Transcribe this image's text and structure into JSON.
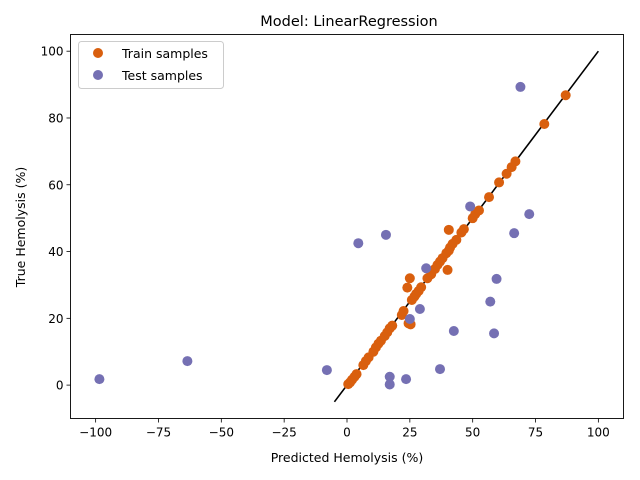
{
  "chart_data": {
    "type": "scatter",
    "title": "Model: LinearRegression",
    "xlabel": "Predicted Hemolysis (%)",
    "ylabel": "True Hemolysis (%)",
    "xlim": [
      -110,
      110
    ],
    "ylim": [
      -10,
      105
    ],
    "x_ticks": [
      -100,
      -75,
      -50,
      -25,
      0,
      25,
      50,
      75,
      100
    ],
    "y_ticks": [
      0,
      20,
      40,
      60,
      80,
      100
    ],
    "grid": false,
    "legend_position": "top-left",
    "reference_line": {
      "from": [
        -5,
        -5
      ],
      "to": [
        100,
        100
      ],
      "color": "#000000"
    },
    "series": [
      {
        "name": "Train samples",
        "color": "#d95f0e",
        "points": [
          [
            0.5,
            0.3
          ],
          [
            1.2,
            0.8
          ],
          [
            2.0,
            1.6
          ],
          [
            3.0,
            2.5
          ],
          [
            3.8,
            3.3
          ],
          [
            6.5,
            6.0
          ],
          [
            7.5,
            7.2
          ],
          [
            8.6,
            8.3
          ],
          [
            10.5,
            10.0
          ],
          [
            11.5,
            11.3
          ],
          [
            12.5,
            12.4
          ],
          [
            13.5,
            13.3
          ],
          [
            15.0,
            14.7
          ],
          [
            16.0,
            15.8
          ],
          [
            17.0,
            17.0
          ],
          [
            18.0,
            17.8
          ],
          [
            21.8,
            21.0
          ],
          [
            22.5,
            22.2
          ],
          [
            24.5,
            18.5
          ],
          [
            25.3,
            18.2
          ],
          [
            24.0,
            29.2
          ],
          [
            25.0,
            32.0
          ],
          [
            25.8,
            25.5
          ],
          [
            26.8,
            26.5
          ],
          [
            27.5,
            27.3
          ],
          [
            28.5,
            28.2
          ],
          [
            29.5,
            29.3
          ],
          [
            32.0,
            32.0
          ],
          [
            33.5,
            33.2
          ],
          [
            35.0,
            34.8
          ],
          [
            36.0,
            36.0
          ],
          [
            37.0,
            37.0
          ],
          [
            38.0,
            38.0
          ],
          [
            39.5,
            39.5
          ],
          [
            40.5,
            40.3
          ],
          [
            41.0,
            41.2
          ],
          [
            42.0,
            42.3
          ],
          [
            43.5,
            43.5
          ],
          [
            40.5,
            46.5
          ],
          [
            40.0,
            34.5
          ],
          [
            45.5,
            45.7
          ],
          [
            46.5,
            46.7
          ],
          [
            50.0,
            50.0
          ],
          [
            51.0,
            51.2
          ],
          [
            52.5,
            52.3
          ],
          [
            56.5,
            56.3
          ],
          [
            60.5,
            60.7
          ],
          [
            63.5,
            63.3
          ],
          [
            65.5,
            65.3
          ],
          [
            67.0,
            67.0
          ],
          [
            78.5,
            78.2
          ],
          [
            87.0,
            86.8
          ]
        ]
      },
      {
        "name": "Test samples",
        "color": "#7570b3",
        "points": [
          [
            -98.5,
            1.8
          ],
          [
            -63.5,
            7.2
          ],
          [
            -8.0,
            4.5
          ],
          [
            4.5,
            42.5
          ],
          [
            15.5,
            45.0
          ],
          [
            17.0,
            2.5
          ],
          [
            17.0,
            0.2
          ],
          [
            23.5,
            1.8
          ],
          [
            25.0,
            19.8
          ],
          [
            29.0,
            22.8
          ],
          [
            31.5,
            35.0
          ],
          [
            37.0,
            4.8
          ],
          [
            42.5,
            16.2
          ],
          [
            49.0,
            53.5
          ],
          [
            57.0,
            25.0
          ],
          [
            58.5,
            15.5
          ],
          [
            59.5,
            31.8
          ],
          [
            66.5,
            45.5
          ],
          [
            69.0,
            89.3
          ],
          [
            72.5,
            51.2
          ]
        ]
      }
    ]
  }
}
